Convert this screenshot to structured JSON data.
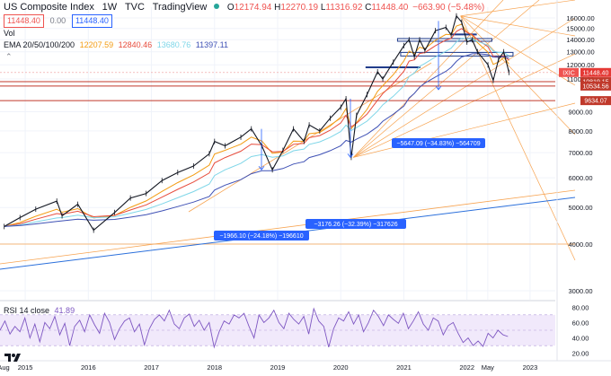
{
  "header": {
    "symbol": "US Composite Index",
    "interval": "1W",
    "exchange": "TVC",
    "source": "TradingView",
    "open_label": "O",
    "open": "12174.94",
    "high_label": "H",
    "high": "12270.19",
    "low_label": "L",
    "low": "11316.92",
    "close_label": "C",
    "close": "11448.40",
    "change": "−663.90 (−5.48%)",
    "price_box_left": "11448.40",
    "spread": "0.00",
    "price_box_right": "11448.40",
    "vol_label": "Vol",
    "ema_label": "EMA 20/50/100/200",
    "ema20": "12207.59",
    "ema50": "12840.46",
    "ema100": "13680.76",
    "ema200": "11397.11"
  },
  "colors": {
    "price": "#131722",
    "orange": "#f7a350",
    "red_line": "#c0392b",
    "blue_line": "#2a6fdb",
    "navy": "#1e3a8a",
    "ema20": "#f39c12",
    "ema50": "#e74c3c",
    "ema100": "#7fd6e8",
    "ema200": "#3f51b5",
    "rsi": "#7e57c2",
    "rsi_band": "#f1e9fb",
    "label_bg": "#2962ff",
    "current_bg": "#e53935"
  },
  "chart_data": {
    "type": "line",
    "title": "US Composite Index",
    "scale": "log",
    "x": [
      "2014-09",
      "2014-12",
      "2015-03",
      "2015-07",
      "2015-08",
      "2015-11",
      "2016-02",
      "2016-06",
      "2016-09",
      "2016-12",
      "2017-03",
      "2017-06",
      "2017-09",
      "2017-12",
      "2018-01",
      "2018-03",
      "2018-06",
      "2018-08",
      "2018-10",
      "2018-12",
      "2019-02",
      "2019-04",
      "2019-06",
      "2019-07",
      "2019-09",
      "2019-11",
      "2020-01",
      "2020-02",
      "2020-03",
      "2020-04",
      "2020-06",
      "2020-08",
      "2020-09",
      "2020-11",
      "2021-01",
      "2021-02",
      "2021-03",
      "2021-04",
      "2021-05",
      "2021-07",
      "2021-09",
      "2021-10",
      "2021-11",
      "2021-12",
      "2022-01",
      "2022-02",
      "2022-03",
      "2022-05",
      "2022-06",
      "2022-07",
      "2022-08",
      "2022-09"
    ],
    "series": [
      {
        "values": [
          4450,
          4700,
          4950,
          5200,
          4750,
          5100,
          4350,
          4850,
          5300,
          5450,
          5900,
          6200,
          6450,
          6950,
          7500,
          7300,
          7700,
          8100,
          7300,
          6300,
          7100,
          8100,
          7500,
          8300,
          8000,
          8650,
          9250,
          9750,
          6800,
          8800,
          10000,
          11500,
          11000,
          12200,
          13500,
          14000,
          12600,
          14000,
          13100,
          14800,
          15100,
          14400,
          16200,
          15600,
          13800,
          14000,
          13000,
          12000,
          10900,
          12400,
          13000,
          11448
        ]
      }
    ],
    "ylim": [
      2500,
      17000
    ],
    "xlabel": "",
    "ylabel": "",
    "x_ticks": [
      "Aug",
      "2015",
      "2016",
      "2017",
      "2018",
      "2019",
      "2020",
      "2021",
      "2022",
      "May",
      "2023"
    ],
    "y_ticks": [
      "16000.00",
      "15000.00",
      "14000.00",
      "13000.00",
      "12000.00",
      "11000.00",
      "9000.00",
      "8000.00",
      "7000.00",
      "6000.00",
      "5000.00",
      "4000.00",
      "3000.00"
    ],
    "price_labels": [
      {
        "text": "IXIC",
        "kind": "symbol"
      },
      {
        "text": "11448.40",
        "kind": "current"
      },
      {
        "text": "10819.15",
        "kind": "red"
      },
      {
        "text": "10534.56",
        "kind": "red"
      },
      {
        "text": "9634.07",
        "kind": "red"
      }
    ],
    "measures": [
      {
        "text": "−1966.10 (−24.18%) −196610"
      },
      {
        "text": "−3176.26 (−32.39%) −317626"
      },
      {
        "text": "−5647.09 (−34.83%) −564709"
      }
    ],
    "rsi": {
      "label": "RSI 14 close",
      "value": "41.89",
      "ticks": [
        "80.00",
        "60.00",
        "40.00",
        "20.00"
      ],
      "band": [
        30,
        70
      ],
      "series": [
        50,
        62,
        45,
        55,
        48,
        66,
        40,
        58,
        35,
        60,
        52,
        68,
        44,
        59,
        30,
        55,
        63,
        48,
        70,
        57,
        46,
        72,
        60,
        38,
        52,
        62,
        66,
        48,
        58,
        31,
        52,
        64,
        70,
        62,
        76,
        58,
        52,
        66,
        71,
        55,
        63,
        50,
        60,
        28,
        48,
        62,
        58,
        70,
        66,
        72,
        55,
        40,
        70,
        60,
        66,
        76,
        60,
        52,
        72,
        64,
        58,
        68,
        45,
        78,
        62,
        55,
        28,
        52,
        66,
        62,
        74,
        58,
        70,
        48,
        60,
        76,
        68,
        56,
        70,
        64,
        59,
        72,
        52,
        62,
        74,
        58,
        50,
        66,
        62,
        44,
        56,
        60,
        46,
        34,
        40,
        30,
        36,
        29,
        46,
        40,
        50,
        44,
        41.89
      ]
    }
  }
}
